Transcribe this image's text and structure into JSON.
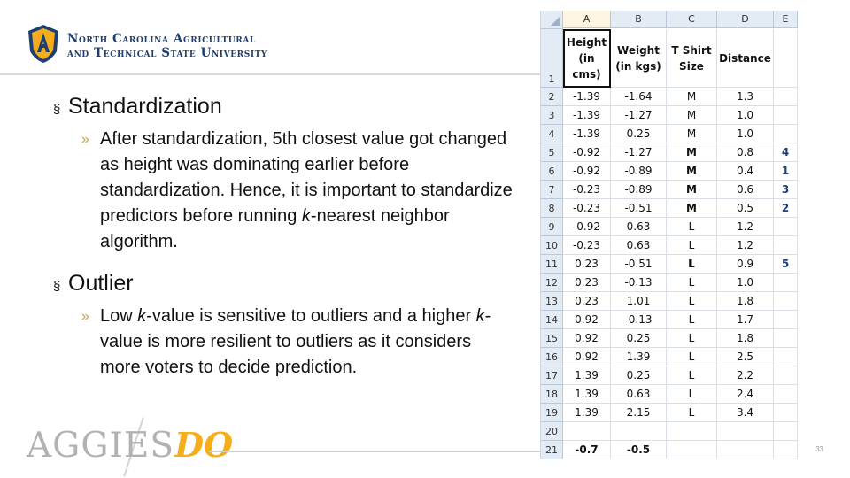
{
  "header": {
    "university_line1": "North Carolina Agricultural",
    "university_line2": "and Technical State University",
    "logo_icon": "aggie-shield-logo"
  },
  "bullets": [
    {
      "title": "Standardization",
      "sub": [
        {
          "parts": [
            "After standardization, 5th closest value got changed as height was dominating earlier before standardization. Hence, it is important to standardize predictors before running ",
            "k",
            "-nearest neighbor algorithm."
          ]
        }
      ]
    },
    {
      "title": "Outlier",
      "sub": [
        {
          "parts": [
            "Low ",
            "k",
            "-value is sensitive to outliers and a higher ",
            "k",
            "-value is more resilient to outliers as it considers more voters to decide prediction."
          ]
        }
      ]
    }
  ],
  "footer": {
    "brand_a": "AGGIES",
    "brand_b": "DO",
    "page_number": "33"
  },
  "sheet": {
    "columns": [
      "A",
      "B",
      "C",
      "D",
      "E"
    ],
    "header_row": {
      "num": "1",
      "a": "Height (in cms)",
      "b": "Weight (in kgs)",
      "c": "T Shirt Size",
      "d": "Distance",
      "e": ""
    },
    "rows": [
      {
        "num": "2",
        "a": "-1.39",
        "b": "-1.64",
        "c": "M",
        "d": "1.3",
        "e": ""
      },
      {
        "num": "3",
        "a": "-1.39",
        "b": "-1.27",
        "c": "M",
        "d": "1.0",
        "e": ""
      },
      {
        "num": "4",
        "a": "-1.39",
        "b": "0.25",
        "c": "M",
        "d": "1.0",
        "e": ""
      },
      {
        "num": "5",
        "a": "-0.92",
        "b": "-1.27",
        "c": "M",
        "d": "0.8",
        "e": "4"
      },
      {
        "num": "6",
        "a": "-0.92",
        "b": "-0.89",
        "c": "M",
        "d": "0.4",
        "e": "1"
      },
      {
        "num": "7",
        "a": "-0.23",
        "b": "-0.89",
        "c": "M",
        "d": "0.6",
        "e": "3"
      },
      {
        "num": "8",
        "a": "-0.23",
        "b": "-0.51",
        "c": "M",
        "d": "0.5",
        "e": "2"
      },
      {
        "num": "9",
        "a": "-0.92",
        "b": "0.63",
        "c": "L",
        "d": "1.2",
        "e": ""
      },
      {
        "num": "10",
        "a": "-0.23",
        "b": "0.63",
        "c": "L",
        "d": "1.2",
        "e": ""
      },
      {
        "num": "11",
        "a": "0.23",
        "b": "-0.51",
        "c": "L",
        "d": "0.9",
        "e": "5"
      },
      {
        "num": "12",
        "a": "0.23",
        "b": "-0.13",
        "c": "L",
        "d": "1.0",
        "e": ""
      },
      {
        "num": "13",
        "a": "0.23",
        "b": "1.01",
        "c": "L",
        "d": "1.8",
        "e": ""
      },
      {
        "num": "14",
        "a": "0.92",
        "b": "-0.13",
        "c": "L",
        "d": "1.7",
        "e": ""
      },
      {
        "num": "15",
        "a": "0.92",
        "b": "0.25",
        "c": "L",
        "d": "1.8",
        "e": ""
      },
      {
        "num": "16",
        "a": "0.92",
        "b": "1.39",
        "c": "L",
        "d": "2.5",
        "e": ""
      },
      {
        "num": "17",
        "a": "1.39",
        "b": "0.25",
        "c": "L",
        "d": "2.2",
        "e": ""
      },
      {
        "num": "18",
        "a": "1.39",
        "b": "0.63",
        "c": "L",
        "d": "2.4",
        "e": ""
      },
      {
        "num": "19",
        "a": "1.39",
        "b": "2.15",
        "c": "L",
        "d": "3.4",
        "e": ""
      },
      {
        "num": "20",
        "a": "",
        "b": "",
        "c": "",
        "d": "",
        "e": ""
      },
      {
        "num": "21",
        "a": "-0.7",
        "b": "-0.5",
        "c": "",
        "d": "",
        "e": ""
      }
    ],
    "bold_rows": [
      "5",
      "6",
      "7",
      "8",
      "11",
      "21"
    ]
  },
  "colors": {
    "brand_blue": "#1f3f73",
    "brand_gold": "#f5ad1b",
    "bullet_accent": "#c8a23c"
  }
}
